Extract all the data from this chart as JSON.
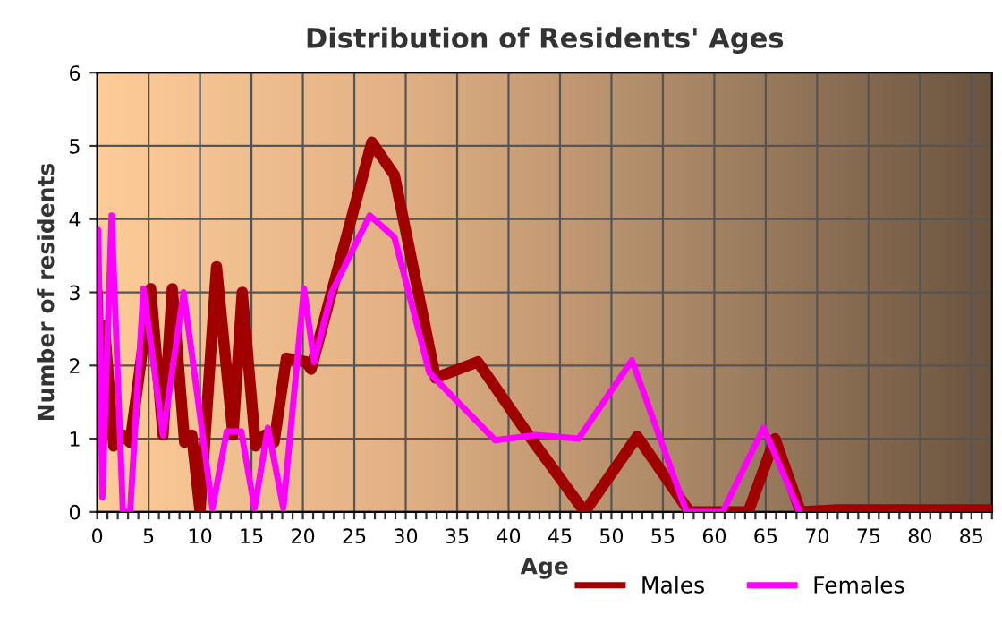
{
  "chart_data": {
    "type": "line",
    "title": "Distribution of Residents' Ages",
    "xlabel": "Age",
    "ylabel": "Number of residents",
    "xlim": [
      0,
      87
    ],
    "ylim": [
      0,
      6
    ],
    "yticks": [
      0,
      1,
      2,
      3,
      4,
      5,
      6
    ],
    "xticks": [
      0,
      {
        "value": 1,
        "label": null
      },
      {
        "value": 2,
        "label": null
      },
      {
        "value": 3,
        "label": null
      },
      {
        "value": 4,
        "label": null
      },
      5,
      {
        "value": 6,
        "label": null
      },
      {
        "value": 7,
        "label": null
      },
      {
        "value": 8,
        "label": null
      },
      {
        "value": 9,
        "label": null
      },
      10,
      {
        "value": 11,
        "label": null
      },
      {
        "value": 12,
        "label": null
      },
      {
        "value": 13,
        "label": null
      },
      {
        "value": 14,
        "label": null
      },
      15,
      {
        "value": 16,
        "label": null
      },
      {
        "value": 17,
        "label": null
      },
      {
        "value": 18,
        "label": null
      },
      {
        "value": 19,
        "label": null
      },
      20,
      {
        "value": 21,
        "label": null
      },
      {
        "value": 22,
        "label": null
      },
      {
        "value": 23,
        "label": null
      },
      {
        "value": 24,
        "label": null
      },
      25,
      {
        "value": 26,
        "label": null
      },
      {
        "value": 27,
        "label": null
      },
      {
        "value": 28,
        "label": null
      },
      {
        "value": 29,
        "label": null
      },
      30,
      {
        "value": 31,
        "label": null
      },
      {
        "value": 32,
        "label": null
      },
      {
        "value": 33,
        "label": null
      },
      {
        "value": 34,
        "label": null
      },
      35,
      {
        "value": 36,
        "label": null
      },
      {
        "value": 37,
        "label": null
      },
      {
        "value": 38,
        "label": null
      },
      {
        "value": 39,
        "label": null
      },
      40,
      {
        "value": 41,
        "label": null
      },
      {
        "value": 42,
        "label": null
      },
      {
        "value": 43,
        "label": null
      },
      {
        "value": 44,
        "label": null
      },
      45,
      {
        "value": 46,
        "label": null
      },
      {
        "value": 47,
        "label": null
      },
      {
        "value": 48,
        "label": null
      },
      {
        "value": 49,
        "label": null
      },
      50,
      {
        "value": 51,
        "label": null
      },
      {
        "value": 52,
        "label": null
      },
      {
        "value": 53,
        "label": null
      },
      {
        "value": 54,
        "label": null
      },
      55,
      {
        "value": 56,
        "label": null
      },
      {
        "value": 57,
        "label": null
      },
      {
        "value": 58,
        "label": null
      },
      {
        "value": 59,
        "label": null
      },
      60,
      {
        "value": 61,
        "label": null
      },
      {
        "value": 62,
        "label": null
      },
      {
        "value": 63,
        "label": null
      },
      {
        "value": 64,
        "label": null
      },
      65,
      {
        "value": 66,
        "label": null
      },
      {
        "value": 67,
        "label": null
      },
      {
        "value": 68,
        "label": null
      },
      {
        "value": 69,
        "label": null
      },
      70,
      {
        "value": 71,
        "label": null
      },
      {
        "value": 72,
        "label": null
      },
      {
        "value": 73,
        "label": null
      },
      {
        "value": 74,
        "label": null
      },
      75,
      {
        "value": 76,
        "label": null
      },
      {
        "value": 77,
        "label": null
      },
      {
        "value": 78,
        "label": null
      },
      {
        "value": 79,
        "label": null
      },
      80,
      {
        "value": 81,
        "label": null
      },
      {
        "value": 82,
        "label": null
      },
      {
        "value": 83,
        "label": null
      },
      {
        "value": 84,
        "label": null
      },
      85,
      {
        "value": 86,
        "label": null
      },
      {
        "value": 87,
        "label": null
      }
    ],
    "grid": true,
    "legend": "bottom",
    "marker": "none",
    "line_style": "solid",
    "series": [
      {
        "name": "Males",
        "color": "#a00000",
        "x": [
          0,
          0.3,
          0.7,
          1.6,
          2.5,
          3.2,
          5.2,
          6.4,
          7.3,
          8.5,
          9.2,
          10,
          11.6,
          13.2,
          14.1,
          15.4,
          16.3,
          17.2,
          18.4,
          20.3,
          20.8,
          22.6,
          26.7,
          28.9,
          32.9,
          37,
          42.2,
          47.4,
          52.5,
          57.6,
          63.3,
          65.9,
          68.4,
          72,
          87
        ],
        "values": [
          3.0,
          1.0,
          2.55,
          0.9,
          1.05,
          0.95,
          3.05,
          1.05,
          3.05,
          0.95,
          1.05,
          0,
          3.35,
          1.05,
          3.0,
          0.9,
          1.05,
          0.95,
          2.1,
          2.05,
          1.95,
          2.9,
          5.05,
          4.6,
          1.83,
          2.05,
          1.0,
          0,
          1.03,
          0,
          0,
          1.0,
          0,
          0.03,
          0.03
        ]
      },
      {
        "name": "Females",
        "color": "#ff00ff",
        "x": [
          0.1,
          0.5,
          1.4,
          2.5,
          3.2,
          4.5,
          6.4,
          8.4,
          11.2,
          12.6,
          14,
          15.3,
          16.6,
          18.1,
          20.1,
          21.1,
          22.8,
          26.5,
          28.9,
          32.3,
          38.7,
          42.7,
          46.8,
          52,
          57.3,
          60.8,
          64.8,
          68.3
        ],
        "values": [
          3.85,
          0.2,
          4.05,
          0,
          0,
          3.05,
          1.05,
          3.0,
          0.05,
          1.1,
          1.1,
          0.05,
          1.15,
          0.05,
          3.05,
          2.05,
          3.0,
          4.05,
          3.75,
          1.9,
          0.98,
          1.05,
          1.0,
          2.07,
          0,
          0,
          1.15,
          0
        ]
      }
    ]
  }
}
